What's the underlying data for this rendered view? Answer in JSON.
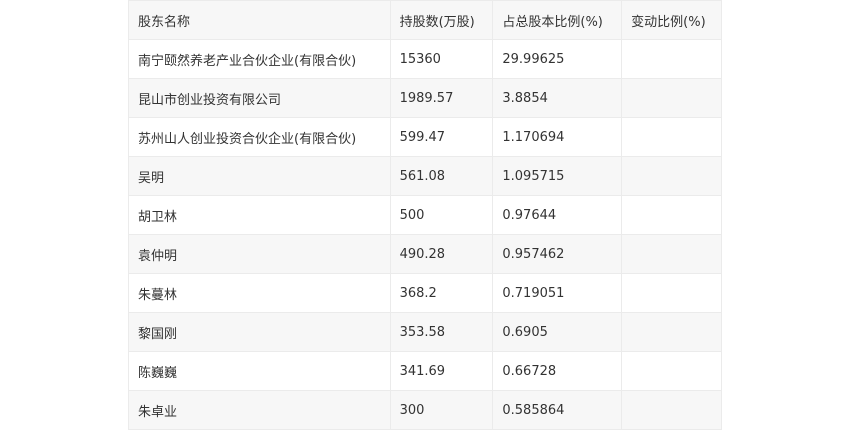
{
  "table": {
    "headers": [
      "股东名称",
      "持股数(万股)",
      "占总股本比例(%)",
      "变动比例(%)"
    ],
    "rows": [
      [
        "南宁颐然养老产业合伙企业(有限合伙)",
        "15360",
        "29.99625",
        ""
      ],
      [
        "昆山市创业投资有限公司",
        "1989.57",
        "3.8854",
        ""
      ],
      [
        "苏州山人创业投资合伙企业(有限合伙)",
        "599.47",
        "1.170694",
        ""
      ],
      [
        "吴明",
        "561.08",
        "1.095715",
        ""
      ],
      [
        "胡卫林",
        "500",
        "0.97644",
        ""
      ],
      [
        "袁仲明",
        "490.28",
        "0.957462",
        ""
      ],
      [
        "朱蔓林",
        "368.2",
        "0.719051",
        ""
      ],
      [
        "黎国刚",
        "353.58",
        "0.6905",
        ""
      ],
      [
        "陈巍巍",
        "341.69",
        "0.66728",
        ""
      ],
      [
        "朱卓业",
        "300",
        "0.585864",
        ""
      ]
    ]
  }
}
